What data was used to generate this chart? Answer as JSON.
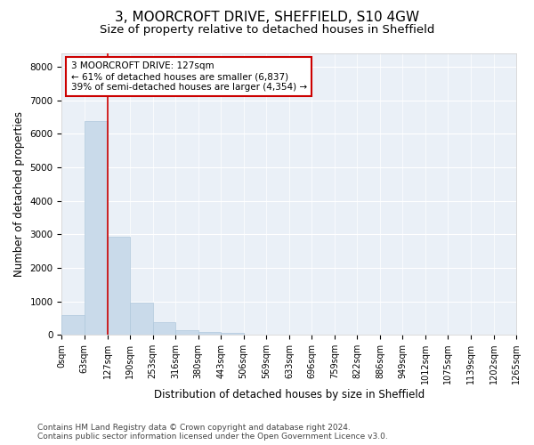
{
  "title": "3, MOORCROFT DRIVE, SHEFFIELD, S10 4GW",
  "subtitle": "Size of property relative to detached houses in Sheffield",
  "xlabel": "Distribution of detached houses by size in Sheffield",
  "ylabel": "Number of detached properties",
  "footer_line1": "Contains HM Land Registry data © Crown copyright and database right 2024.",
  "footer_line2": "Contains public sector information licensed under the Open Government Licence v3.0.",
  "bin_edges": [
    0,
    63,
    127,
    190,
    253,
    316,
    380,
    443,
    506,
    569,
    633,
    696,
    759,
    822,
    886,
    949,
    1012,
    1075,
    1139,
    1202,
    1265
  ],
  "bar_heights": [
    580,
    6380,
    2920,
    970,
    370,
    150,
    90,
    50,
    0,
    0,
    0,
    0,
    0,
    0,
    0,
    0,
    0,
    0,
    0,
    0
  ],
  "bar_color": "#c9daea",
  "bar_edgecolor": "#b0c8dc",
  "vline_x": 127,
  "vline_color": "#cc0000",
  "ylim": [
    0,
    8400
  ],
  "yticks": [
    0,
    1000,
    2000,
    3000,
    4000,
    5000,
    6000,
    7000,
    8000
  ],
  "annotation_title": "3 MOORCROFT DRIVE: 127sqm",
  "annotation_line2": "← 61% of detached houses are smaller (6,837)",
  "annotation_line3": "39% of semi-detached houses are larger (4,354) →",
  "annotation_box_edgecolor": "#cc0000",
  "annotation_bg": "#ffffff",
  "background_color": "#eaf0f7",
  "grid_color": "#ffffff",
  "title_fontsize": 11,
  "subtitle_fontsize": 9.5,
  "tick_label_fontsize": 7,
  "ylabel_fontsize": 8.5,
  "xlabel_fontsize": 8.5,
  "annotation_fontsize": 7.5,
  "footer_fontsize": 6.5
}
